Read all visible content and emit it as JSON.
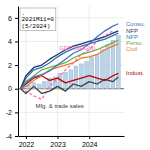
{
  "chart_data": {
    "type": "line",
    "xlim": [
      2021.75,
      2025.1
    ],
    "xticks": [
      2022,
      2023,
      2024
    ],
    "ylim": [
      -4,
      7
    ],
    "yticks": [
      -4,
      -2,
      0,
      2,
      4,
      6
    ],
    "grid": true,
    "series": [
      {
        "type": "bar",
        "color": "#b8d4ea",
        "x": [
          2021.92,
          2022.08,
          2022.25,
          2022.42,
          2022.58,
          2022.75,
          2022.92,
          2023.08,
          2023.25,
          2023.42,
          2023.58,
          2023.75,
          2023.92,
          2024.08,
          2024.25,
          2024.42,
          2024.58,
          2024.75,
          2024.92
        ],
        "values": [
          0.0,
          0.3,
          0.5,
          0.4,
          0.6,
          0.9,
          1.0,
          1.3,
          1.4,
          1.6,
          1.9,
          2.1,
          2.3,
          2.7,
          2.9,
          3.3,
          3.7,
          4.1,
          4.5
        ]
      },
      {
        "type": "line",
        "color": "#ff69b4",
        "line_style": "dashed",
        "x": [
          2021.83,
          2022.0,
          2022.25,
          2022.5,
          2022.75,
          2023.0,
          2023.25,
          2023.5,
          2023.75,
          2024.0,
          2024.25,
          2024.5,
          2024.75
        ],
        "values": [
          0,
          -0.2,
          -0.6,
          -0.9,
          0.2,
          0.9,
          1.6,
          2.2,
          2.9,
          3.3,
          4.0,
          4.5,
          4.9
        ]
      },
      {
        "type": "line",
        "color": "#404040",
        "x": [
          2021.83,
          2022.0,
          2022.25,
          2022.5,
          2022.75,
          2023.0,
          2023.25,
          2023.5,
          2023.75,
          2024.0,
          2024.25,
          2024.5,
          2024.75,
          2024.92
        ],
        "values": [
          0,
          -0.4,
          0.2,
          -0.4,
          -0.2,
          0.2,
          -0.2,
          0.4,
          0.2,
          0.6,
          0.4,
          0.8,
          0.6,
          1.0
        ]
      },
      {
        "type": "line",
        "name": "Indust.",
        "color": "#c00000",
        "x": [
          2021.83,
          2022.0,
          2022.25,
          2022.5,
          2022.75,
          2023.0,
          2023.25,
          2023.5,
          2023.75,
          2024.0,
          2024.25,
          2024.5,
          2024.75,
          2024.92
        ],
        "values": [
          0,
          0.4,
          0.9,
          1.1,
          0.7,
          0.9,
          0.5,
          0.7,
          0.9,
          1.1,
          0.9,
          0.7,
          1.1,
          1.3
        ]
      },
      {
        "type": "line",
        "name": "Civil",
        "color": "#ed7d31",
        "x": [
          2021.83,
          2022.0,
          2022.25,
          2022.5,
          2022.75,
          2023.0,
          2023.25,
          2023.5,
          2023.75,
          2024.0,
          2024.25,
          2024.5,
          2024.75,
          2024.92
        ],
        "values": [
          0,
          0.2,
          0.7,
          1.1,
          1.6,
          1.8,
          2.0,
          2.2,
          2.6,
          2.7,
          2.9,
          3.3,
          3.6,
          3.8
        ]
      },
      {
        "type": "line",
        "name": "Perso.",
        "color": "#70ad47",
        "x": [
          2021.83,
          2022.0,
          2022.25,
          2022.5,
          2022.75,
          2023.0,
          2023.25,
          2023.5,
          2023.75,
          2024.0,
          2024.25,
          2024.5,
          2024.75,
          2024.92
        ],
        "values": [
          0,
          0.6,
          1.1,
          1.6,
          1.8,
          2.0,
          2.2,
          2.6,
          2.9,
          3.1,
          3.3,
          3.6,
          3.9,
          4.1
        ]
      },
      {
        "type": "line",
        "name": "NFP",
        "color": "#2e75b6",
        "x": [
          2021.83,
          2022.0,
          2022.25,
          2022.5,
          2022.75,
          2023.0,
          2023.25,
          2023.5,
          2023.75,
          2024.0,
          2024.25,
          2024.5,
          2024.75,
          2024.92
        ],
        "values": [
          0,
          0.9,
          1.6,
          1.8,
          2.2,
          2.7,
          3.1,
          3.4,
          3.6,
          3.8,
          4.0,
          4.2,
          4.5,
          4.7
        ]
      },
      {
        "type": "line",
        "name": "NFP",
        "color": "#1f3864",
        "x": [
          2021.83,
          2022.0,
          2022.25,
          2022.5,
          2022.75,
          2023.0,
          2023.25,
          2023.5,
          2023.75,
          2024.0,
          2024.25,
          2024.5,
          2024.75,
          2024.92
        ],
        "values": [
          0,
          1.1,
          1.8,
          2.0,
          2.5,
          2.9,
          3.3,
          3.6,
          3.8,
          4.0,
          4.2,
          4.4,
          4.7,
          4.9
        ]
      },
      {
        "type": "line",
        "name": "Consu.",
        "color": "#4472c4",
        "x": [
          2021.83,
          2022.0,
          2022.25,
          2022.5,
          2022.75,
          2023.0,
          2023.25,
          2023.5,
          2023.75,
          2024.0,
          2024.25,
          2024.5,
          2024.75,
          2024.92
        ],
        "values": [
          0,
          0.5,
          1.0,
          1.2,
          1.5,
          2.0,
          2.5,
          3.0,
          3.3,
          3.8,
          4.4,
          4.9,
          5.3,
          5.5
        ]
      }
    ],
    "annotations": [
      {
        "text": "GDP (SPGM)",
        "x": 2023.05,
        "y": 3.3,
        "color": "#ff69b4"
      },
      {
        "text": "Mfg. & trade sales",
        "x": 2022.3,
        "y": -1.6,
        "color": "#404040"
      }
    ],
    "text_box": [
      ".",
      "2021M11=0",
      "(5/2024)"
    ]
  }
}
